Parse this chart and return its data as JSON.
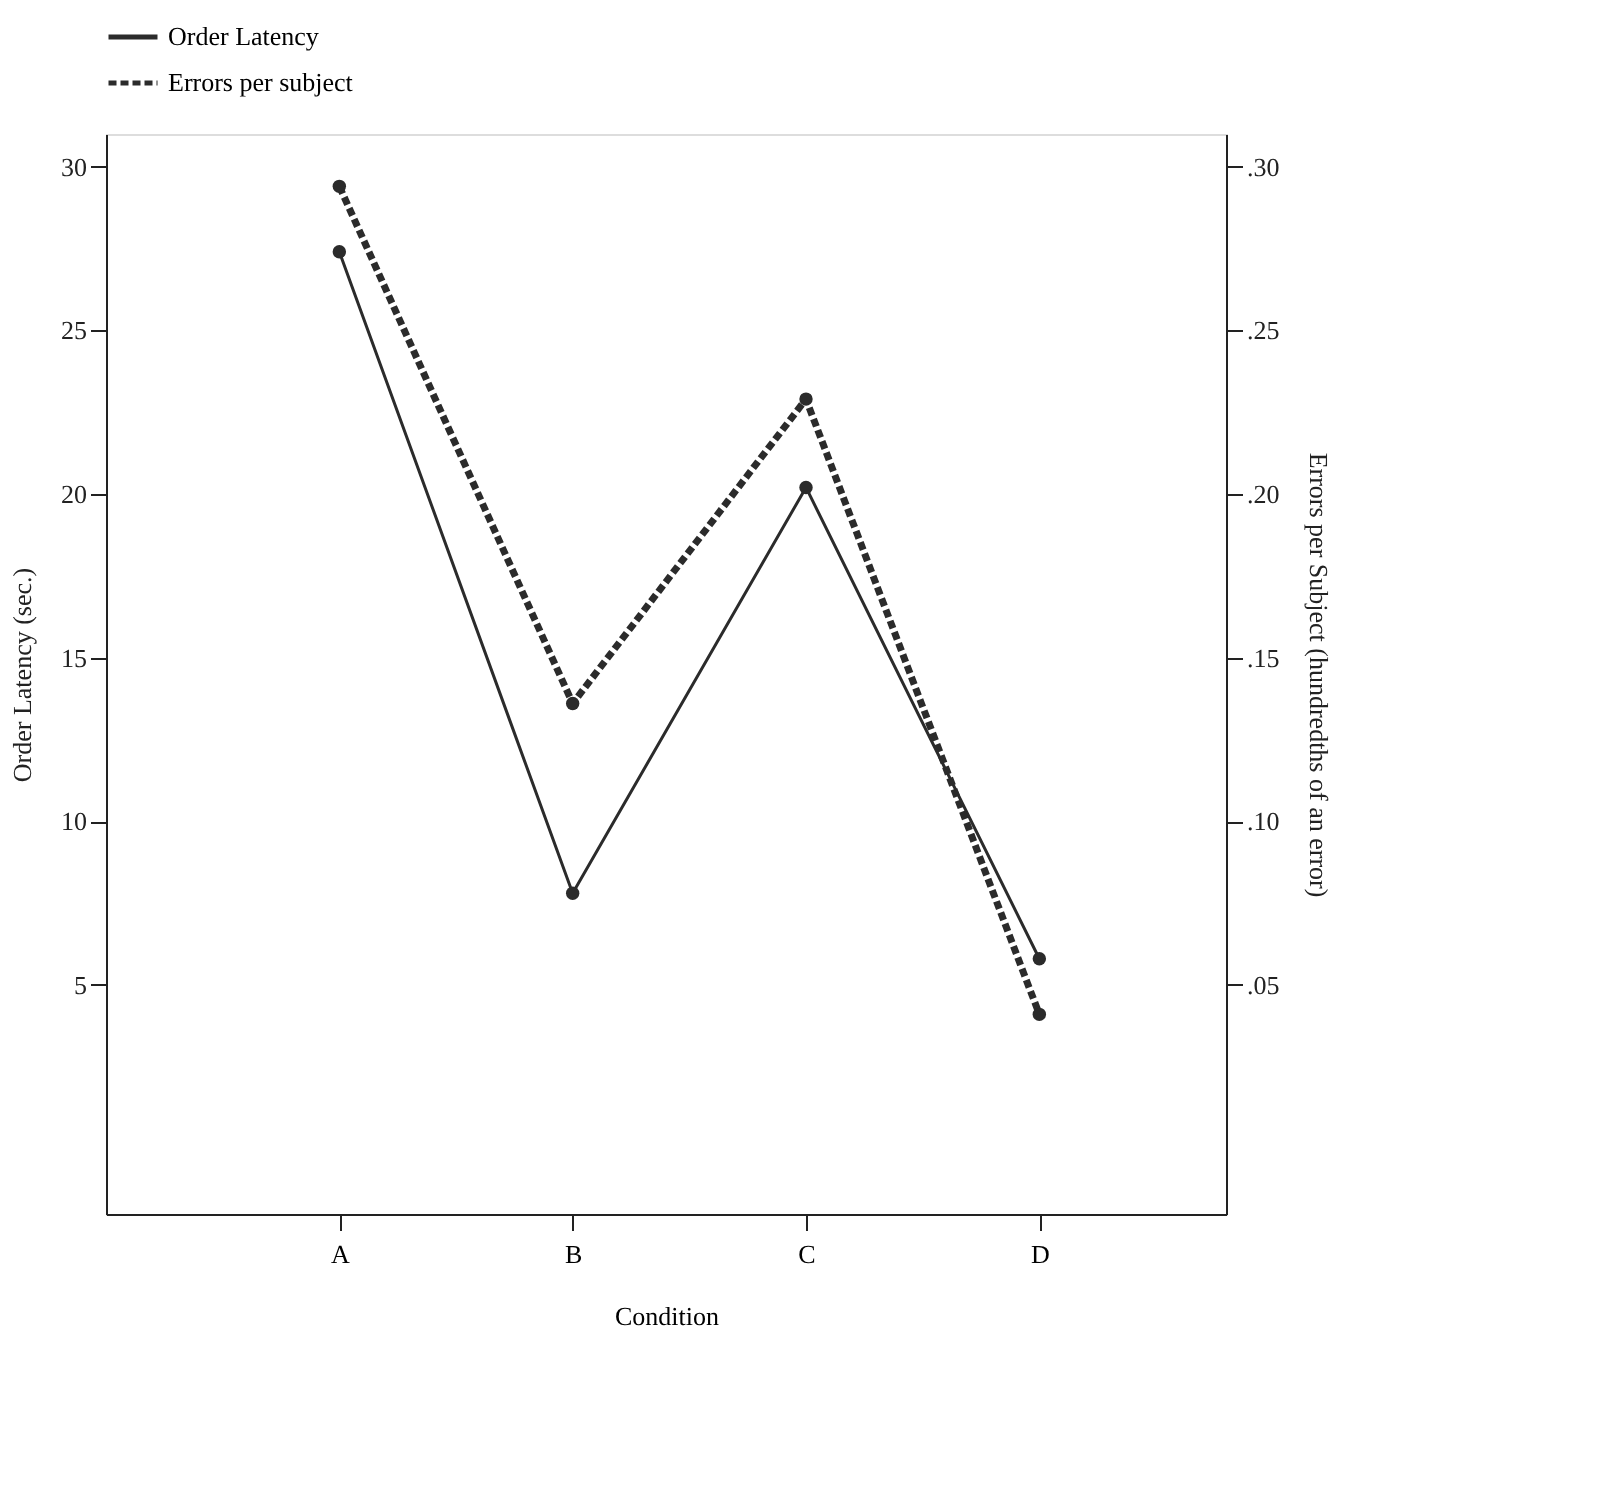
{
  "chart_data": {
    "type": "line",
    "xlabel": "Condition",
    "ylabel": "Order Latency (sec.)",
    "y2label": "Errors per Subject (hundredths of an error)",
    "categories": [
      "A",
      "B",
      "C",
      "D"
    ],
    "series": [
      {
        "name": "Order Latency",
        "color": "#2b2b2b",
        "line_style": "solid",
        "values": [
          27.4,
          7.8,
          20.2,
          5.8
        ]
      },
      {
        "name": "Errors per subject",
        "color": "#2b2b2b",
        "line_style": "dashed",
        "axis": "y2",
        "values": [
          0.294,
          0.136,
          0.229,
          0.041
        ]
      }
    ],
    "ylim": [
      -2,
      31
    ],
    "yticks": [
      5,
      10,
      15,
      20,
      25,
      30
    ],
    "y2lim": [
      -0.02,
      0.31
    ],
    "y2ticks": [
      {
        "value": 0.05,
        "label": ".05"
      },
      {
        "value": 0.1,
        "label": ".10"
      },
      {
        "value": 0.15,
        "label": ".15"
      },
      {
        "value": 0.2,
        "label": ".20"
      },
      {
        "value": 0.25,
        "label": ".25"
      },
      {
        "value": 0.3,
        "label": ".30"
      }
    ],
    "marker": "circle",
    "grid": false,
    "legend": "top"
  }
}
